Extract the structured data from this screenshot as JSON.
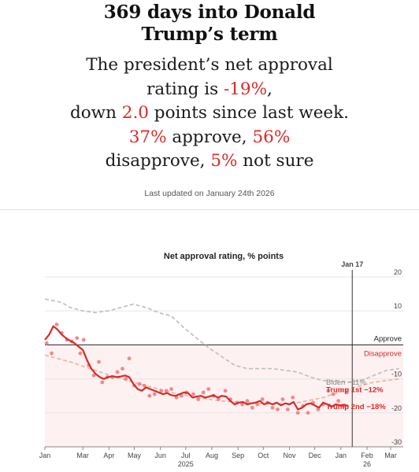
{
  "headline": {
    "line1": "369 days into Donald",
    "line2": "Trump’s term"
  },
  "summary": {
    "text1": "The president’s net approval",
    "text2a": "rating is ",
    "net": "-19%",
    "text2b": ",",
    "text3a": "down ",
    "change": "2.0",
    "text3b": " points since last week.",
    "approve": "37%",
    "approve_word": " approve, ",
    "disapprove": "56%",
    "disapprove_word": "disapprove, ",
    "not_sure": "5%",
    "not_sure_word": " not sure"
  },
  "updated": "Last updated on January 24th 2026",
  "colors": {
    "red": "#d92a2a",
    "light_red": "#ef8a8a",
    "gray_dash": "#bdbdbd",
    "peach_dash": "#e8b4a0",
    "disapprove_fill": "#fdf1f1"
  },
  "chart_data": {
    "type": "line",
    "title": "Net approval rating, % points",
    "marker_label": "Jan 17",
    "marker_x": 364.5,
    "xlim": [
      0,
      425
    ],
    "ylim": [
      -30,
      20
    ],
    "y_ticks": [
      20,
      10,
      -10,
      -20,
      -30
    ],
    "x_ticks": [
      {
        "x": 0,
        "label": "Jan"
      },
      {
        "x": 45,
        "label": "Mar"
      },
      {
        "x": 76,
        "label": "Apr"
      },
      {
        "x": 106,
        "label": "May"
      },
      {
        "x": 137,
        "label": "Jun"
      },
      {
        "x": 167,
        "label": "Jul"
      },
      {
        "x": 198,
        "label": "Aug"
      },
      {
        "x": 229,
        "label": "Sep"
      },
      {
        "x": 259,
        "label": "Oct"
      },
      {
        "x": 290,
        "label": "Nov"
      },
      {
        "x": 320,
        "label": "Dec"
      },
      {
        "x": 351,
        "label": "Jan"
      },
      {
        "x": 382,
        "label": "Feb"
      },
      {
        "x": 410,
        "label": "Mar"
      }
    ],
    "year_labels": [
      {
        "x": 167,
        "label": "2025"
      },
      {
        "x": 382,
        "label": "26"
      }
    ],
    "zones": {
      "approve": "Approve",
      "disapprove": "Disapprove"
    },
    "series": [
      {
        "name": "Trump 2nd",
        "label": "Trump 2nd −18%",
        "style": "solid",
        "x": [
          0,
          5,
          10,
          15,
          20,
          25,
          30,
          35,
          40,
          45,
          50,
          55,
          60,
          65,
          70,
          75,
          80,
          85,
          90,
          95,
          100,
          105,
          110,
          115,
          120,
          125,
          130,
          135,
          140,
          145,
          150,
          155,
          160,
          165,
          170,
          175,
          180,
          185,
          190,
          195,
          200,
          205,
          210,
          215,
          220,
          225,
          230,
          235,
          240,
          245,
          250,
          255,
          260,
          265,
          270,
          275,
          280,
          285,
          290,
          295,
          300,
          305,
          310,
          315,
          320,
          325,
          330,
          335,
          340,
          345,
          350,
          355,
          360
        ],
        "values": [
          1.5,
          3,
          5.5,
          4.5,
          3,
          2,
          1.2,
          0.5,
          -0.5,
          -1.5,
          -4.5,
          -7,
          -8.5,
          -9.5,
          -10,
          -9.5,
          -9.2,
          -9.5,
          -9.3,
          -9,
          -9.5,
          -11.5,
          -13,
          -13.5,
          -12.5,
          -13,
          -13.5,
          -14,
          -14.5,
          -14.2,
          -14.8,
          -15,
          -14.5,
          -14,
          -14.2,
          -15.5,
          -15.2,
          -15,
          -15.5,
          -15.2,
          -14.8,
          -15.5,
          -15,
          -15.2,
          -16.5,
          -17.5,
          -17,
          -16.8,
          -17.5,
          -17.2,
          -17,
          -16.5,
          -17.5,
          -17,
          -17.5,
          -17,
          -17.8,
          -17.2,
          -17.5,
          -16.8,
          -19,
          -18.5,
          -17.5,
          -17.2,
          -17.8,
          -18.5,
          -17,
          -17.5,
          -18.2,
          -17.5,
          -17.8,
          -17.6,
          -18
        ]
      },
      {
        "name": "Trump 1st",
        "label": "Trump 1st −12%",
        "style": "dashed",
        "x": [
          0,
          30,
          60,
          90,
          120,
          150,
          180,
          210,
          240,
          270,
          300,
          330,
          360,
          390,
          420
        ],
        "values": [
          -3,
          -5,
          -7.5,
          -10,
          -12,
          -14,
          -15.5,
          -16.5,
          -17,
          -17.5,
          -17,
          -15.5,
          -13,
          -11,
          -10
        ]
      },
      {
        "name": "Biden",
        "label": "Biden −11%",
        "style": "dashed",
        "x": [
          0,
          10,
          20,
          30,
          45,
          60,
          75,
          90,
          105,
          120,
          135,
          150,
          165,
          180,
          195,
          210,
          225,
          240,
          255,
          270,
          285,
          300,
          315,
          330,
          345,
          360,
          375,
          390,
          405,
          420
        ],
        "values": [
          13.5,
          13,
          12.5,
          11,
          10,
          9.5,
          10,
          11,
          12,
          11,
          9.5,
          8.5,
          5,
          2,
          -1,
          -3.5,
          -6,
          -7,
          -7,
          -7,
          -7.5,
          -8,
          -9.5,
          -10.5,
          -10.5,
          -11,
          -10.5,
          -9,
          -7.5,
          -7
        ]
      },
      {
        "name": "Polls",
        "style": "points",
        "x": [
          2,
          8,
          14,
          20,
          26,
          32,
          38,
          42,
          46,
          52,
          58,
          64,
          68,
          74,
          80,
          86,
          92,
          96,
          100,
          106,
          112,
          118,
          124,
          130,
          138,
          144,
          150,
          156,
          162,
          168,
          176,
          182,
          188,
          194,
          200,
          206,
          214,
          220,
          228,
          234,
          240,
          246,
          252,
          258,
          264,
          270,
          276,
          282,
          288,
          294,
          300,
          306,
          312,
          318,
          324,
          330,
          336,
          342,
          348,
          354,
          358
        ],
        "values": [
          0.5,
          -2.5,
          6,
          3.5,
          1.5,
          1,
          2,
          -2.5,
          1.5,
          -6,
          -9,
          -5,
          -11,
          -9.5,
          -9.5,
          -8,
          -7,
          -10,
          -4,
          -12,
          -11.5,
          -12,
          -15,
          -14.5,
          -13.5,
          -13.5,
          -13,
          -15.5,
          -15,
          -14,
          -14.5,
          -16,
          -14,
          -13,
          -15,
          -16,
          -13.5,
          -16,
          -17,
          -17.5,
          -16.5,
          -18.5,
          -17.5,
          -16,
          -17,
          -18.5,
          -19,
          -16,
          -19,
          -15.5,
          -20,
          -18,
          -20,
          -17,
          -19,
          -17.5,
          -13.5,
          -14.5,
          -16.5,
          -18,
          -14
        ]
      }
    ]
  }
}
